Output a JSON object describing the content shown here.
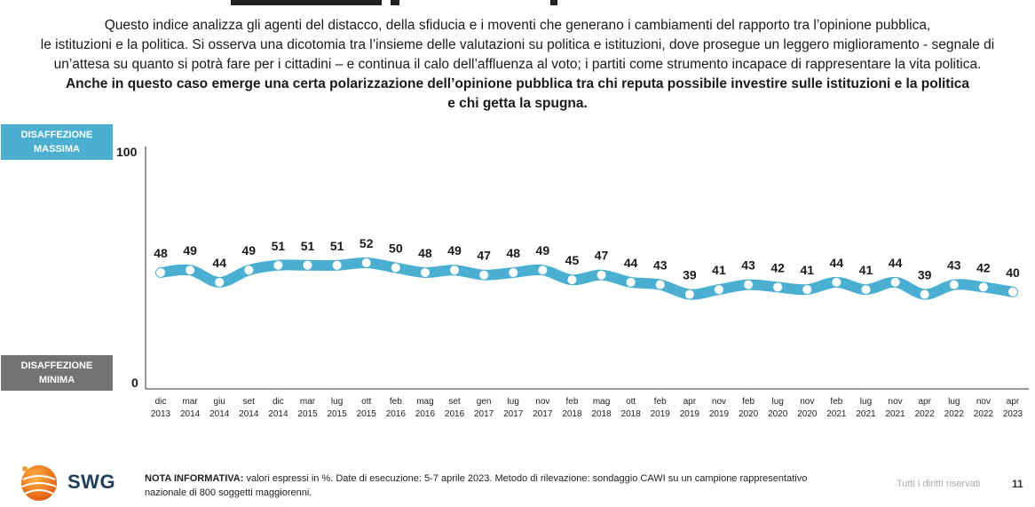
{
  "intro": {
    "line1": "Questo indice analizza gli agenti del distacco, della sfiducia e i moventi che generano i cambiamenti del rapporto tra l’opinione pubblica,",
    "line2": "le istituzioni e la politica. Si osserva una dicotomia tra l’insieme delle valutazioni su politica e istituzioni, dove prosegue un leggero miglioramento - segnale di",
    "line3": "un’attesa su quanto si potrà fare per i cittadini – e continua il calo dell’affluenza al voto; i partiti come strumento incapace di rappresentare la vita politica.",
    "bold1": "Anche in questo caso emerge una certa polarizzazione dell’opinione pubblica tra chi reputa possibile investire sulle istituzioni e la politica",
    "bold2": "e chi getta la spugna."
  },
  "badges": {
    "max_line1": "DISAFFEZIONE",
    "max_line2": "MASSIMA",
    "min_line1": "DISAFFEZIONE",
    "min_line2": "MINIMA"
  },
  "colors": {
    "line": "#4aafd0",
    "max_badge": "#4aafd0",
    "min_badge": "#737373"
  },
  "chart_data": {
    "type": "line",
    "ylim": [
      0,
      100
    ],
    "y_ticks": [
      "100",
      "0"
    ],
    "grid": false,
    "categories": [
      [
        "dic",
        "2013"
      ],
      [
        "mar",
        "2014"
      ],
      [
        "giu",
        "2014"
      ],
      [
        "set",
        "2014"
      ],
      [
        "dic",
        "2014"
      ],
      [
        "mar",
        "2015"
      ],
      [
        "lug",
        "2015"
      ],
      [
        "ott",
        "2015"
      ],
      [
        "feb",
        "2016"
      ],
      [
        "mag",
        "2016"
      ],
      [
        "set",
        "2016"
      ],
      [
        "gen",
        "2017"
      ],
      [
        "lug",
        "2017"
      ],
      [
        "nov",
        "2017"
      ],
      [
        "feb",
        "2018"
      ],
      [
        "mag",
        "2018"
      ],
      [
        "ott",
        "2018"
      ],
      [
        "feb",
        "2019"
      ],
      [
        "apr",
        "2019"
      ],
      [
        "nov",
        "2019"
      ],
      [
        "feb",
        "2020"
      ],
      [
        "lug",
        "2020"
      ],
      [
        "nov",
        "2020"
      ],
      [
        "feb",
        "2021"
      ],
      [
        "lug",
        "2021"
      ],
      [
        "nov",
        "2021"
      ],
      [
        "apr",
        "2022"
      ],
      [
        "lug",
        "2022"
      ],
      [
        "nov",
        "2022"
      ],
      [
        "apr",
        "2023"
      ]
    ],
    "values": [
      48,
      49,
      44,
      49,
      51,
      51,
      51,
      52,
      50,
      48,
      49,
      47,
      48,
      49,
      45,
      47,
      44,
      43,
      39,
      41,
      43,
      42,
      41,
      44,
      41,
      44,
      39,
      43,
      42,
      40
    ]
  },
  "footer": {
    "logo_text": "SWG",
    "note_label": "NOTA INFORMATIVA:",
    "note_text": " valori espressi in %. Date di esecuzione: 5-7 aprile 2023. Metodo di rilevazione: sondaggio CAWI su un campione rappresentativo nazionale di 800 soggetti maggiorenni.",
    "rights": "Tutti i diritti riservati",
    "page_number": "11"
  }
}
